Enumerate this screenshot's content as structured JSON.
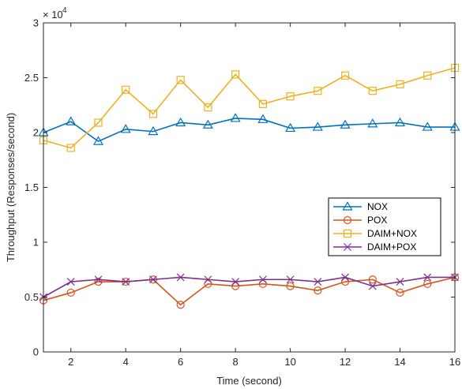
{
  "chart_data": {
    "type": "line",
    "title": "",
    "xlabel": "Time (second)",
    "ylabel": "Throughput (Responses/second)",
    "exponent_label": "× 10",
    "exponent_power": "4",
    "xlim": [
      1,
      16
    ],
    "ylim": [
      0,
      3
    ],
    "xticks": [
      2,
      4,
      6,
      8,
      10,
      12,
      14,
      16
    ],
    "xtick_labels": [
      "2",
      "4",
      "6",
      "8",
      "10",
      "12",
      "14",
      "16"
    ],
    "yticks": [
      0,
      0.5,
      1,
      1.5,
      2,
      2.5,
      3
    ],
    "ytick_labels": [
      "0",
      "0.5",
      "1",
      "1.5",
      "2",
      "2.5",
      "3"
    ],
    "grid": false,
    "legend_position": "right",
    "x": [
      1,
      2,
      3,
      4,
      5,
      6,
      7,
      8,
      9,
      10,
      11,
      12,
      13,
      14,
      15,
      16
    ],
    "series": [
      {
        "name": "NOX",
        "marker": "triangle",
        "color": "#0072BD",
        "values": [
          2.0,
          2.1,
          1.92,
          2.03,
          2.01,
          2.09,
          2.07,
          2.13,
          2.12,
          2.04,
          2.05,
          2.07,
          2.08,
          2.09,
          2.05,
          2.05
        ]
      },
      {
        "name": "POX",
        "marker": "circle",
        "color": "#D95319",
        "values": [
          0.47,
          0.54,
          0.64,
          0.64,
          0.66,
          0.43,
          0.62,
          0.6,
          0.62,
          0.6,
          0.56,
          0.64,
          0.66,
          0.54,
          0.62,
          0.68
        ]
      },
      {
        "name": "DAIM+NOX",
        "marker": "square",
        "color": "#EDB120",
        "values": [
          1.93,
          1.86,
          2.09,
          2.39,
          2.17,
          2.48,
          2.23,
          2.53,
          2.26,
          2.33,
          2.38,
          2.52,
          2.38,
          2.44,
          2.52,
          2.59
        ]
      },
      {
        "name": "DAIM+POX",
        "marker": "x",
        "color": "#7E2F8E",
        "values": [
          0.5,
          0.64,
          0.66,
          0.64,
          0.66,
          0.68,
          0.66,
          0.64,
          0.66,
          0.66,
          0.64,
          0.68,
          0.6,
          0.64,
          0.68,
          0.68
        ]
      }
    ]
  }
}
